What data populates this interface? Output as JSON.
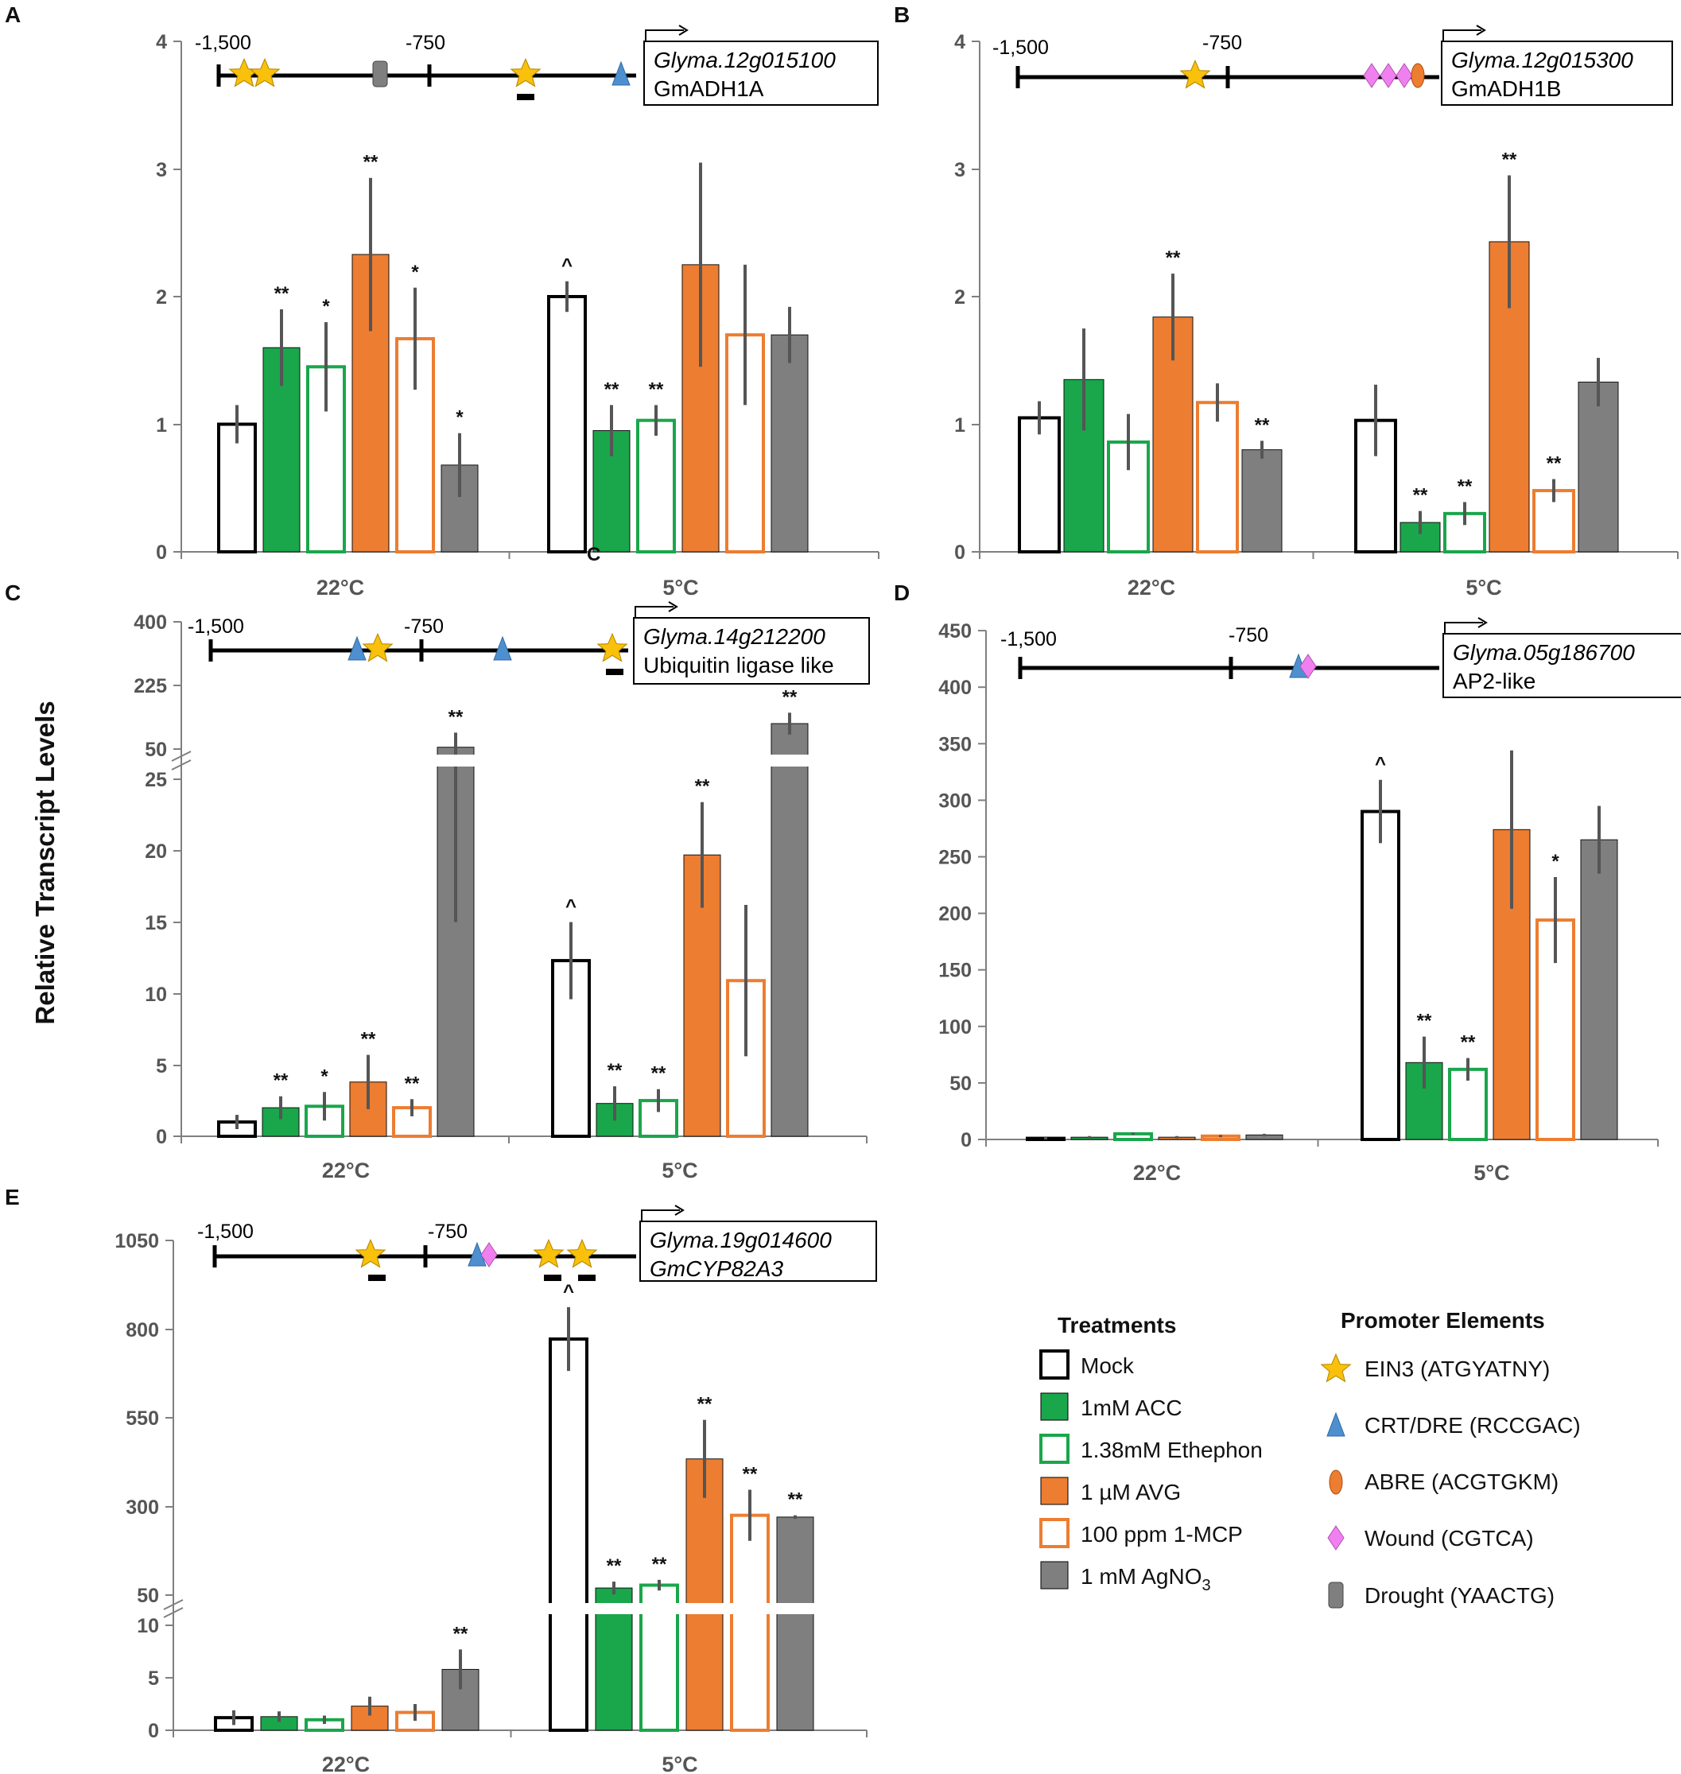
{
  "y_axis_label": "Relative Transcript Levels",
  "colors": {
    "mock": "#000000",
    "acc": "#1aa64b",
    "ethephon": "#1aa64b",
    "avg": "#ed7d31",
    "mcp": "#ed7d31",
    "agno3": "#7f7f7f",
    "err": "#555555",
    "axis": "#7f7f7f"
  },
  "legend": {
    "treat_title": "Treatments",
    "treatments": [
      "Mock",
      "1mM ACC",
      "1.38mM Ethephon",
      "1 µM AVG",
      "100 ppm 1-MCP",
      "1 mM AgNO"
    ],
    "agno3_sub": "3",
    "elem_title": "Promoter Elements",
    "elements": [
      "EIN3 (ATGYATNY)",
      "CRT/DRE (RCCGAC)",
      "ABRE (ACGTGKM)",
      "Wound (CGTCA)",
      "Drought (YAACTG)"
    ]
  },
  "stray_label": "C",
  "chart_data": [
    {
      "id": "A",
      "type": "bar",
      "panel": "A",
      "categories": [
        "22°C",
        "5°C"
      ],
      "series_names": [
        "Mock",
        "1mM ACC",
        "1.38mM Ethephon",
        "1 µM AVG",
        "100 ppm 1-MCP",
        "1 mM AgNO3"
      ],
      "values": [
        [
          1.0,
          1.6,
          1.45,
          2.33,
          1.67,
          0.68
        ],
        [
          2.0,
          0.95,
          1.03,
          2.25,
          1.7,
          1.7
        ]
      ],
      "errors": [
        [
          0.15,
          0.3,
          0.35,
          0.6,
          0.4,
          0.25
        ],
        [
          0.12,
          0.2,
          0.12,
          0.8,
          0.55,
          0.22
        ]
      ],
      "sig": [
        [
          "",
          "**",
          "*",
          "**",
          "*",
          "*"
        ],
        [
          "^",
          "**",
          "**",
          "",
          "",
          ""
        ]
      ],
      "ylim": [
        0,
        4
      ],
      "yticks": [
        "0",
        "1",
        "2",
        "3",
        "4"
      ],
      "promoter": {
        "coord_start": "-1,500",
        "coord_mid": "-750",
        "gene": "Glyma.12g015100",
        "protein": "GmADH1A"
      }
    },
    {
      "id": "B",
      "type": "bar",
      "panel": "B",
      "categories": [
        "22°C",
        "5°C"
      ],
      "series_names": [
        "Mock",
        "1mM ACC",
        "1.38mM Ethephon",
        "1 µM AVG",
        "100 ppm 1-MCP",
        "1 mM AgNO3"
      ],
      "values": [
        [
          1.05,
          1.35,
          0.86,
          1.84,
          1.17,
          0.8
        ],
        [
          1.03,
          0.23,
          0.3,
          2.43,
          0.48,
          1.33
        ]
      ],
      "errors": [
        [
          0.13,
          0.4,
          0.22,
          0.34,
          0.15,
          0.07
        ],
        [
          0.28,
          0.09,
          0.09,
          0.52,
          0.09,
          0.19
        ]
      ],
      "sig": [
        [
          "",
          "",
          "",
          "**",
          "",
          "**"
        ],
        [
          "",
          "**",
          "**",
          "**",
          "**",
          ""
        ]
      ],
      "ylim": [
        0,
        4
      ],
      "yticks": [
        "0",
        "1",
        "2",
        "3",
        "4"
      ],
      "promoter": {
        "coord_start": "-1,500",
        "coord_mid": "-750",
        "gene": "Glyma.12g015300",
        "protein": "GmADH1B"
      }
    },
    {
      "id": "C",
      "type": "bar",
      "panel": "C",
      "broken_axis": true,
      "categories": [
        "22°C",
        "5°C"
      ],
      "series_names": [
        "Mock",
        "1mM ACC",
        "1.38mM Ethephon",
        "1 µM AVG",
        "100 ppm 1-MCP",
        "1 mM AgNO3"
      ],
      "values": [
        [
          1.0,
          2.0,
          2.1,
          3.8,
          2.0,
          55
        ],
        [
          12.3,
          2.3,
          2.5,
          19.7,
          10.9,
          120
        ]
      ],
      "errors": [
        [
          0.5,
          0.8,
          1.0,
          1.9,
          0.6,
          40
        ],
        [
          2.7,
          1.2,
          0.8,
          3.7,
          5.3,
          30
        ]
      ],
      "sig": [
        [
          "",
          "**",
          "*",
          "**",
          "**",
          "**"
        ],
        [
          "^",
          "**",
          "**",
          "**",
          "",
          "**"
        ]
      ],
      "ylim_lower": [
        0,
        25
      ],
      "ylim_upper": [
        50,
        400
      ],
      "yticks_lower": [
        "0",
        "5",
        "10",
        "15",
        "20",
        "25"
      ],
      "yticks_upper": [
        "50",
        "225",
        "400"
      ],
      "promoter": {
        "coord_start": "-1,500",
        "coord_mid": "-750",
        "gene": "Glyma.14g212200",
        "protein": "Ubiquitin ligase like"
      }
    },
    {
      "id": "D",
      "type": "bar",
      "panel": "D",
      "categories": [
        "22°C",
        "5°C"
      ],
      "series_names": [
        "Mock",
        "1mM ACC",
        "1.38mM Ethephon",
        "1 µM AVG",
        "100 ppm 1-MCP",
        "1 mM AgNO3"
      ],
      "values": [
        [
          1,
          2,
          5,
          2,
          3,
          4
        ],
        [
          290,
          68,
          62,
          274,
          194,
          265
        ]
      ],
      "errors": [
        [
          1,
          1,
          1,
          1,
          1,
          1
        ],
        [
          28,
          23,
          10,
          70,
          38,
          30
        ]
      ],
      "sig": [
        [
          "",
          "",
          "",
          "",
          "",
          ""
        ],
        [
          "^",
          "**",
          "**",
          "",
          "*",
          ""
        ]
      ],
      "ylim": [
        0,
        450
      ],
      "yticks": [
        "0",
        "50",
        "100",
        "150",
        "200",
        "250",
        "300",
        "350",
        "400",
        "450"
      ],
      "promoter": {
        "coord_start": "-1,500",
        "coord_mid": "-750",
        "gene": "Glyma.05g186700",
        "protein": "AP2-like"
      }
    },
    {
      "id": "E",
      "type": "bar",
      "panel": "E",
      "broken_axis": true,
      "categories": [
        "22°C",
        "5°C"
      ],
      "series_names": [
        "Mock",
        "1mM ACC",
        "1.38mM Ethephon",
        "1 µM AVG",
        "100 ppm 1-MCP",
        "1 mM AgNO3"
      ],
      "values": [
        [
          1.2,
          1.3,
          1.0,
          2.3,
          1.7,
          5.8
        ],
        [
          772,
          70,
          78,
          434,
          275,
          270
        ]
      ],
      "errors": [
        [
          0.7,
          0.5,
          0.4,
          0.9,
          0.8,
          1.9
        ],
        [
          90,
          18,
          15,
          110,
          72,
          5
        ]
      ],
      "sig": [
        [
          "",
          "",
          "",
          "",
          "",
          "**"
        ],
        [
          "^",
          "**",
          "**",
          "**",
          "**",
          "**"
        ]
      ],
      "ylim_lower": [
        0,
        10
      ],
      "ylim_upper": [
        50,
        1050
      ],
      "yticks_lower": [
        "0",
        "5",
        "10"
      ],
      "yticks_upper": [
        "50",
        "300",
        "550",
        "800",
        "1050"
      ],
      "promoter": {
        "coord_start": "-1,500",
        "coord_mid": "-750",
        "gene": "Glyma.19g014600",
        "protein": "GmCYP82A3"
      }
    }
  ]
}
